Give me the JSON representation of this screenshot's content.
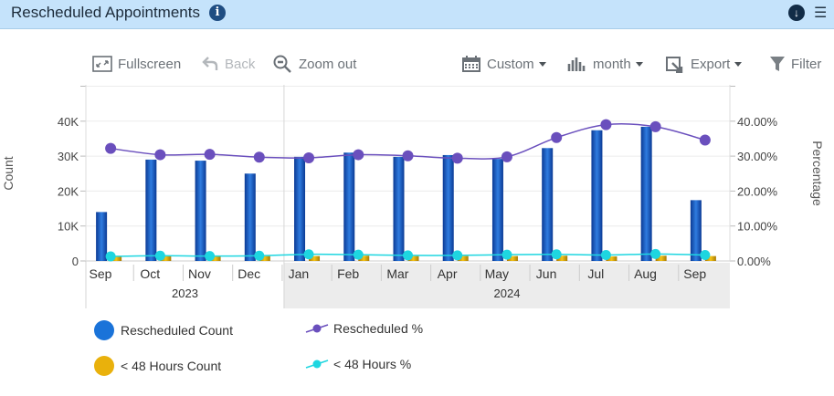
{
  "header": {
    "title": "Rescheduled Appointments",
    "info_icon": "info-icon",
    "download_icon": "download-circle-icon",
    "menu_icon": "hamburger-menu-icon"
  },
  "toolbar": {
    "fullscreen": "Fullscreen",
    "back": "Back",
    "zoom_out": "Zoom out",
    "custom": "Custom",
    "month": "month",
    "export": "Export",
    "filter": "Filter"
  },
  "chart_data": {
    "type": "bar+line",
    "title": "Rescheduled Appointments",
    "categories": [
      "Sep",
      "Oct",
      "Nov",
      "Dec",
      "Jan",
      "Feb",
      "Mar",
      "Apr",
      "May",
      "Jun",
      "Jul",
      "Aug",
      "Sep"
    ],
    "year_groups": [
      {
        "label": "2023",
        "span": 4
      },
      {
        "label": "2024",
        "span": 9
      }
    ],
    "ylabel": "Count",
    "y2label": "Percentage",
    "ylim": [
      0,
      50000
    ],
    "y2lim": [
      0,
      50
    ],
    "yticks": [
      "0",
      "10K",
      "20K",
      "30K",
      "40K"
    ],
    "y2ticks": [
      "0.00%",
      "10.00%",
      "20.00%",
      "30.00%",
      "40.00%"
    ],
    "series": [
      {
        "name": "Rescheduled Count",
        "type": "bar",
        "axis": "left",
        "color": "#1a63c9",
        "values": [
          14000,
          29000,
          28700,
          25000,
          29800,
          31000,
          29800,
          30300,
          29200,
          32300,
          37400,
          38400,
          17400
        ]
      },
      {
        "name": "< 48 Hours Count",
        "type": "bar",
        "axis": "left",
        "color": "#e9b10c",
        "values": [
          1200,
          1300,
          1400,
          1400,
          1400,
          1500,
          1400,
          1400,
          1400,
          1500,
          1300,
          1500,
          1400
        ]
      },
      {
        "name": "Rescheduled %",
        "type": "line",
        "axis": "right",
        "color": "#6a4fbd",
        "values": [
          32.2,
          30.4,
          30.5,
          29.7,
          29.5,
          30.4,
          30.1,
          29.4,
          29.8,
          35.3,
          39.0,
          38.4,
          34.6
        ]
      },
      {
        "name": "< 48 Hours %",
        "type": "line",
        "axis": "right",
        "color": "#1ed6e0",
        "values": [
          1.3,
          1.5,
          1.4,
          1.5,
          1.9,
          1.8,
          1.6,
          1.6,
          1.8,
          1.9,
          1.7,
          2.0,
          1.7
        ]
      }
    ]
  }
}
